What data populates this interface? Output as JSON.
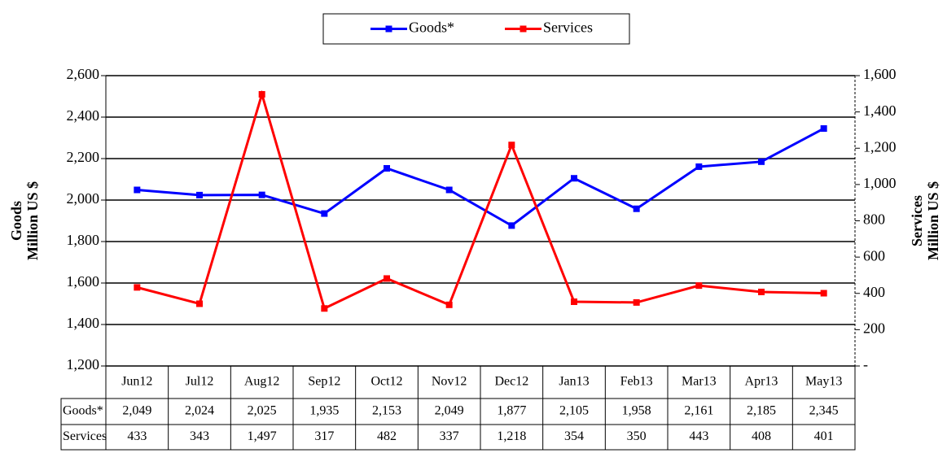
{
  "chart_data": {
    "type": "line",
    "categories": [
      "Jun12",
      "Jul12",
      "Aug12",
      "Sep12",
      "Oct12",
      "Nov12",
      "Dec12",
      "Jan13",
      "Feb13",
      "Mar13",
      "Apr13",
      "May13"
    ],
    "series": [
      {
        "name": "Goods*",
        "color": "#0000ff",
        "values": [
          2049,
          2024,
          2025,
          1935,
          2153,
          2049,
          1877,
          2105,
          1958,
          2161,
          2185,
          2345
        ],
        "value_labels": [
          "2,049",
          "2,024",
          "2,025",
          "1,935",
          "2,153",
          "2,049",
          "1,877",
          "2,105",
          "1,958",
          "2,161",
          "2,185",
          "2,345"
        ]
      },
      {
        "name": "Services",
        "color": "#ff0000",
        "axis": "y2",
        "values": [
          433,
          343,
          1497,
          317,
          482,
          337,
          1218,
          354,
          350,
          443,
          408,
          401
        ],
        "value_labels": [
          "433",
          "343",
          "1,497",
          "317",
          "482",
          "337",
          "1,218",
          "354",
          "350",
          "443",
          "408",
          "401"
        ]
      }
    ],
    "ylabel": [
      "Goods",
      "Million US $"
    ],
    "y2label": [
      "Services",
      "Million US $"
    ],
    "ylim": [
      1200,
      2600
    ],
    "yticks": [
      {
        "value": 1200,
        "label": "1,200"
      },
      {
        "value": 1400,
        "label": "1,400"
      },
      {
        "value": 1600,
        "label": "1,600"
      },
      {
        "value": 1800,
        "label": "1,800"
      },
      {
        "value": 2000,
        "label": "2,000"
      },
      {
        "value": 2200,
        "label": "2,200"
      },
      {
        "value": 2400,
        "label": "2,400"
      },
      {
        "value": 2600,
        "label": "2,600"
      }
    ],
    "y2lim": [
      0,
      1600
    ],
    "y2ticks": [
      {
        "value": 0,
        "label": "-"
      },
      200,
      400,
      600,
      800,
      {
        "value": 1000,
        "label": "1,000"
      },
      {
        "value": 1200,
        "label": "1,200"
      },
      {
        "value": 1400,
        "label": "1,400"
      },
      {
        "value": 1600,
        "label": "1,600"
      }
    ],
    "grid": true,
    "legend": "top"
  }
}
